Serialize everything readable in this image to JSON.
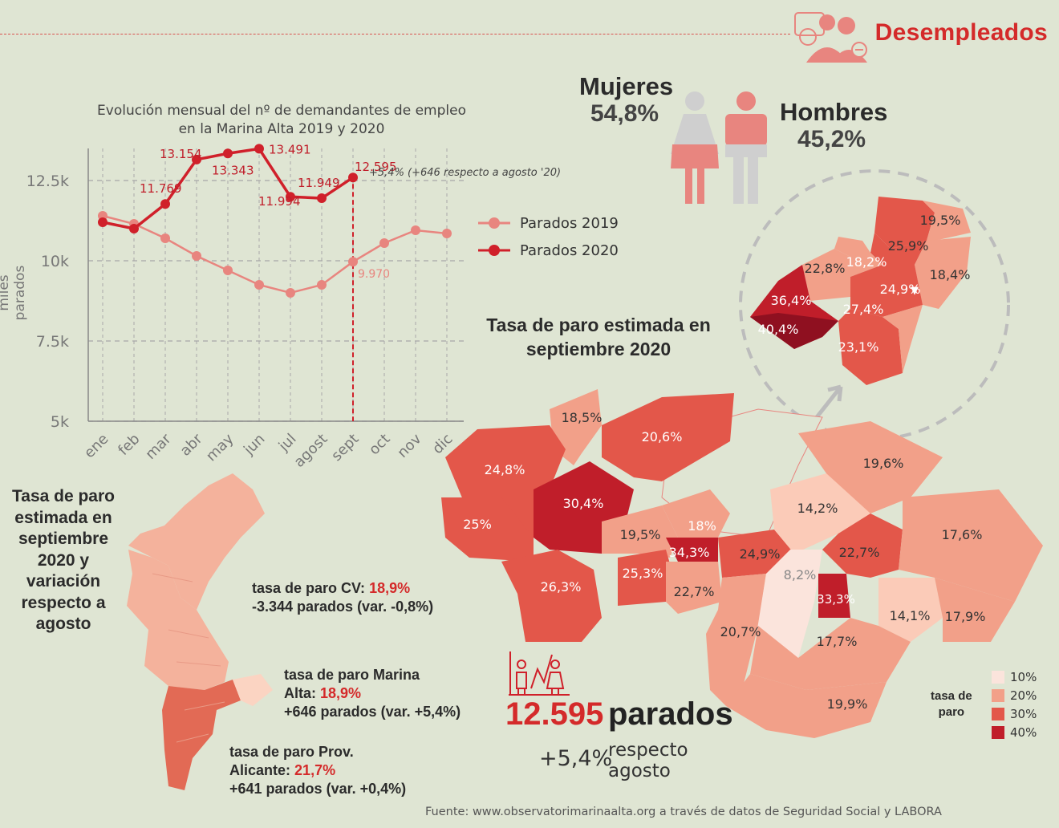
{
  "header": {
    "title": "Desempleados"
  },
  "gender": {
    "women_label": "Mujeres",
    "women_pct": "54,8%",
    "men_label": "Hombres",
    "men_pct": "45,2%"
  },
  "chart_data": {
    "type": "line",
    "title": "Evolución mensual del nº de demandantes de empleo en la Marina Alta 2019 y 2020",
    "title_line1": "Evolución mensual del nº de demandantes de empleo",
    "title_line2": "en la Marina Alta 2019 y 2020",
    "ylabel": "miles parados",
    "categories": [
      "ene",
      "feb",
      "mar",
      "abr",
      "may",
      "jun",
      "jul",
      "agost",
      "sept",
      "oct",
      "nov",
      "dic"
    ],
    "yticks": [
      "12.5k",
      "10k",
      "7.5k",
      "5k"
    ],
    "ylim": [
      5000,
      13900
    ],
    "series": [
      {
        "name": "Parados 2019",
        "color": "#e8857f",
        "values": [
          11400,
          11150,
          10700,
          10150,
          9700,
          9250,
          9000,
          9250,
          9970,
          10550,
          10950,
          10850
        ]
      },
      {
        "name": "Parados 2020",
        "color": "#d0202a",
        "values": [
          11200,
          11000,
          11769,
          13154,
          13343,
          13491,
          11994,
          11949,
          12595,
          null,
          null,
          null
        ]
      }
    ],
    "labels_2020": [
      "11.769",
      "13.154",
      "13.343",
      "13.491",
      "11.994",
      "11.949",
      "12.595"
    ],
    "label_2019_sept": "9.970",
    "annotation": "+5,4% (+646 respecto a agosto '20)"
  },
  "map": {
    "title_line1": "Tasa de paro estimada en",
    "title_line2": "septiembre 2020",
    "municipalities": [
      "18,5%",
      "20,6%",
      "24,8%",
      "30,4%",
      "25%",
      "19,5%",
      "18%",
      "34,3%",
      "26,3%",
      "25,3%",
      "22,7%",
      "24,9%",
      "20,7%",
      "8,2%",
      "33,3%",
      "22,7%",
      "14,2%",
      "19,6%",
      "17,6%",
      "14,1%",
      "17,9%",
      "17,7%",
      "19,9%"
    ],
    "inset": [
      "19,5%",
      "25,9%",
      "22,8%",
      "18,2%",
      "18,4%",
      "36,4%",
      "24,9%",
      "27,4%",
      "40,4%",
      "23,1%"
    ],
    "legend_title": "tasa de paro",
    "legend_title_l1": "tasa de",
    "legend_title_l2": "paro",
    "legend": [
      "10%",
      "20%",
      "30%",
      "40%"
    ],
    "legend_colors": [
      "#fbe4dc",
      "#f2a089",
      "#e3574a",
      "#c01e2a"
    ]
  },
  "cv_panel": {
    "title_l1": "Tasa de paro",
    "title_l2": "estimada en",
    "title_l3": "septiembre",
    "title_l4": "2020 y",
    "title_l5": "variación",
    "title_l6": "respecto a",
    "title_l7": "agosto",
    "cv_label": "tasa de paro CV:",
    "cv_value": "18,9%",
    "cv_sub": "-3.344 parados (var. -0,8%)",
    "ma_label_l1": "tasa de paro Marina",
    "ma_label_l2": "Alta:",
    "ma_value": "18,9%",
    "ma_sub": "+646 parados (var. +5,4%)",
    "al_label_l1": "tasa de paro Prov.",
    "al_label_l2": "Alicante:",
    "al_value": "21,7%",
    "al_sub": "+641 parados (var. +0,4%)"
  },
  "summary": {
    "count": "12.595",
    "count_label": "parados",
    "change": "+5,4%",
    "change_l1": "respecto",
    "change_l2": "agosto"
  },
  "footer": {
    "source": "Fuente: www.observatorimarinaalta.org a través de datos de Seguridad Social y LABORA"
  }
}
